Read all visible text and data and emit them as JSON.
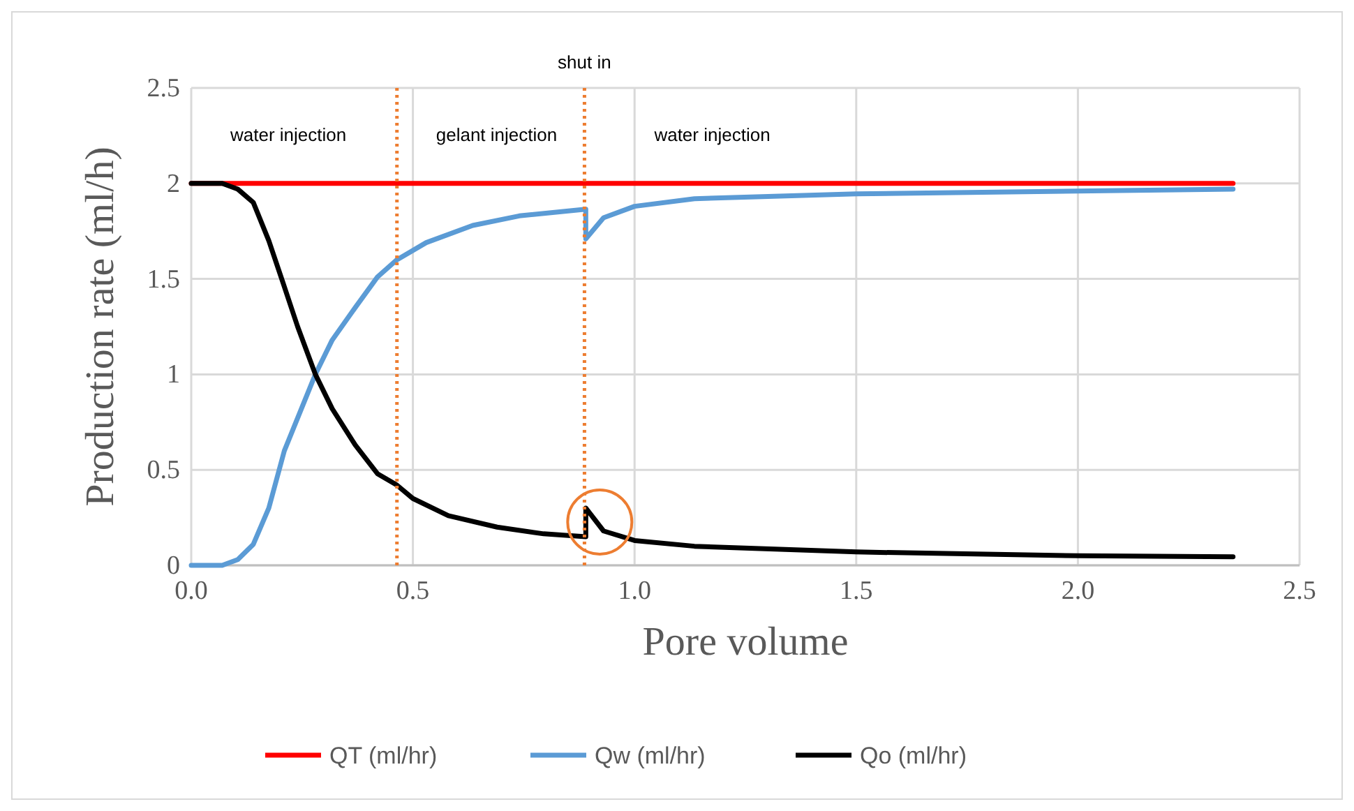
{
  "chart_data": {
    "type": "line",
    "xlabel": "Pore volume",
    "ylabel": "Production rate (ml/h)",
    "xlim": [
      0,
      2.5
    ],
    "ylim": [
      0,
      2.5
    ],
    "xticks": [
      {
        "value": 0,
        "label": "0.0"
      },
      {
        "value": 0.5,
        "label": "0.5"
      },
      {
        "value": 1,
        "label": "1.0"
      },
      {
        "value": 1.5,
        "label": "1.5"
      },
      {
        "value": 2,
        "label": "2.0"
      },
      {
        "value": 2.5,
        "label": "2.5"
      }
    ],
    "yticks": [
      0,
      0.5,
      1,
      1.5,
      2,
      2.5
    ],
    "grid": true,
    "legend": "bottom",
    "marker": "none",
    "line_style": "solid",
    "series": [
      {
        "name": "QT (ml/hr)",
        "color": "#ff0000",
        "x": [
          0,
          2.35
        ],
        "values": [
          2,
          2
        ]
      },
      {
        "name": "Qw (ml/hr)",
        "color": "#5b9bd5",
        "x": [
          0,
          0.07,
          0.105,
          0.14,
          0.175,
          0.21,
          0.28,
          0.318,
          0.37,
          0.42,
          0.464,
          0.53,
          0.635,
          0.74,
          0.89,
          0.89,
          0.93,
          1.0,
          1.135,
          1.5,
          2.0,
          2.35
        ],
        "values": [
          0,
          0,
          0.03,
          0.11,
          0.3,
          0.6,
          1.0,
          1.18,
          1.35,
          1.51,
          1.6,
          1.69,
          1.78,
          1.83,
          1.865,
          1.71,
          1.82,
          1.88,
          1.92,
          1.945,
          1.96,
          1.97
        ]
      },
      {
        "name": "Qo (ml/hr)",
        "color": "#000000",
        "x": [
          0,
          0.07,
          0.105,
          0.14,
          0.175,
          0.207,
          0.24,
          0.28,
          0.318,
          0.37,
          0.42,
          0.464,
          0.5,
          0.58,
          0.69,
          0.795,
          0.89,
          0.89,
          0.93,
          1.0,
          1.135,
          1.5,
          2.0,
          2.35
        ],
        "values": [
          2,
          2,
          1.97,
          1.9,
          1.7,
          1.48,
          1.25,
          1.0,
          0.82,
          0.63,
          0.48,
          0.42,
          0.35,
          0.26,
          0.2,
          0.165,
          0.15,
          0.3,
          0.18,
          0.13,
          0.1,
          0.07,
          0.05,
          0.045
        ]
      }
    ],
    "ref_lines": [
      {
        "axis": "x",
        "value": 0.464,
        "label": null,
        "color": "#ed7d31",
        "line_style": "dotted"
      },
      {
        "axis": "x",
        "value": 0.887,
        "label": "shut in",
        "color": "#ed7d31",
        "line_style": "dotted"
      }
    ],
    "annotations": [
      "water injection",
      "gelant injection",
      "water injection"
    ]
  }
}
